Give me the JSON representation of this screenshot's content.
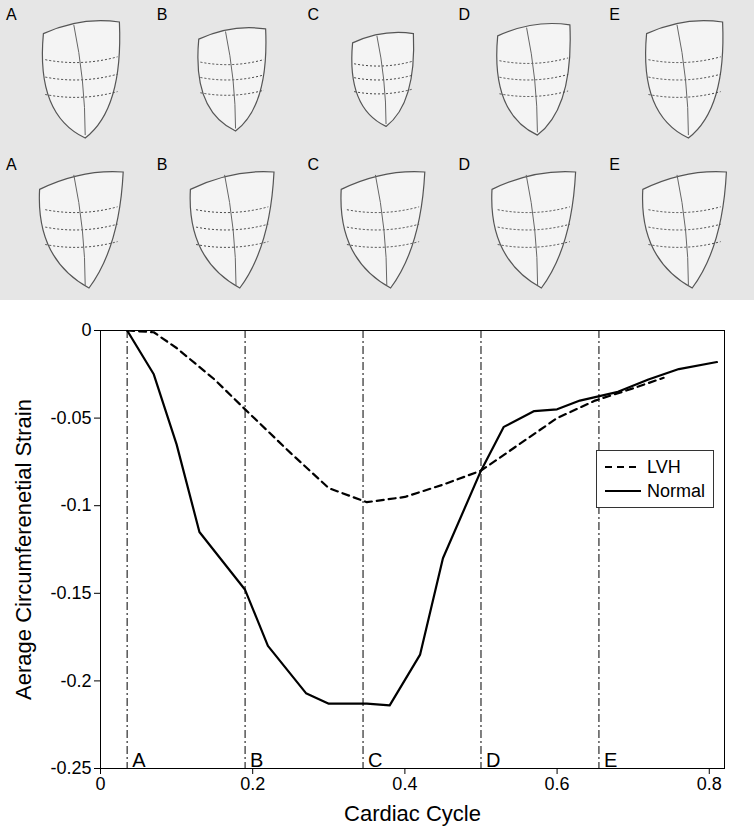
{
  "chart_data": {
    "type": "line",
    "x_label": "Cardiac Cycle",
    "y_label": "Aerage Circumferenetial Strain",
    "xlim": [
      0,
      0.82
    ],
    "xticks": [
      0,
      0.2,
      0.4,
      0.6,
      0.8
    ],
    "ylim": [
      -0.25,
      0
    ],
    "yticks": [
      -0.25,
      -0.2,
      -0.15,
      -0.1,
      -0.05,
      0
    ],
    "legend": "right",
    "series": [
      {
        "name": "LVH",
        "color": "#000000",
        "line_style": "dashed",
        "x": [
          0.035,
          0.07,
          0.1,
          0.15,
          0.19,
          0.25,
          0.3,
          0.35,
          0.4,
          0.45,
          0.5,
          0.55,
          0.6,
          0.65,
          0.7,
          0.74
        ],
        "values": [
          0,
          -0.001,
          -0.01,
          -0.028,
          -0.045,
          -0.07,
          -0.09,
          -0.098,
          -0.095,
          -0.088,
          -0.08,
          -0.065,
          -0.05,
          -0.04,
          -0.033,
          -0.027
        ]
      },
      {
        "name": "Normal",
        "color": "#000000",
        "line_style": "solid",
        "x": [
          0.035,
          0.07,
          0.1,
          0.13,
          0.19,
          0.22,
          0.27,
          0.3,
          0.35,
          0.38,
          0.42,
          0.45,
          0.5,
          0.53,
          0.57,
          0.6,
          0.63,
          0.68,
          0.72,
          0.76,
          0.81
        ],
        "values": [
          0,
          -0.025,
          -0.065,
          -0.115,
          -0.148,
          -0.18,
          -0.207,
          -0.213,
          -0.213,
          -0.214,
          -0.185,
          -0.13,
          -0.08,
          -0.055,
          -0.046,
          -0.045,
          -0.04,
          -0.035,
          -0.028,
          -0.022,
          -0.018
        ]
      }
    ],
    "annotations": [
      {
        "x": 0.035,
        "label": "A",
        "line_style": "dashdot"
      },
      {
        "x": 0.19,
        "label": "B",
        "line_style": "dashdot"
      },
      {
        "x": 0.345,
        "label": "C",
        "line_style": "dashdot"
      },
      {
        "x": 0.5,
        "label": "D",
        "line_style": "dashdot"
      },
      {
        "x": 0.655,
        "label": "E",
        "line_style": "dashdot"
      }
    ]
  }
}
